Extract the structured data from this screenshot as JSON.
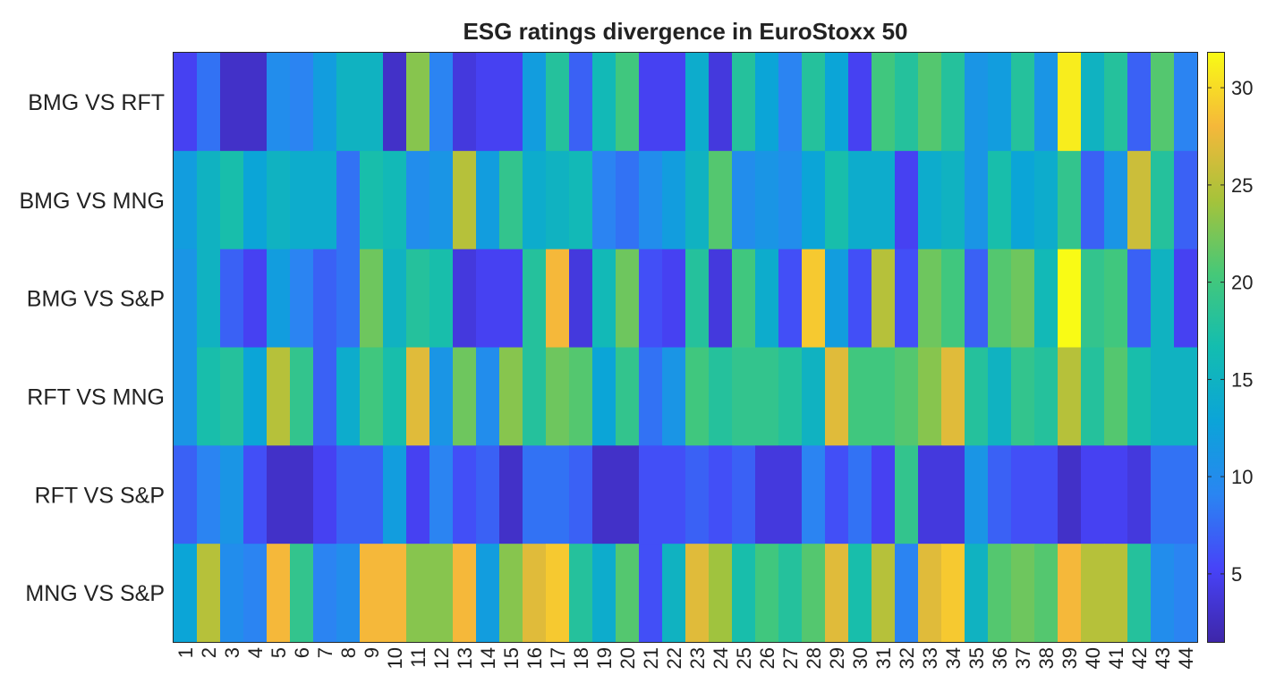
{
  "chart_data": {
    "type": "heatmap",
    "title": "ESG ratings divergence in EuroStoxx 50",
    "rows": [
      "BMG VS RFT",
      "BMG VS MNG",
      "BMG VS S&P",
      "RFT VS MNG",
      "RFT VS S&P",
      "MNG VS S&P"
    ],
    "columns": [
      "1",
      "2",
      "3",
      "4",
      "5",
      "6",
      "7",
      "8",
      "9",
      "10",
      "11",
      "12",
      "13",
      "14",
      "15",
      "16",
      "17",
      "18",
      "19",
      "20",
      "21",
      "22",
      "23",
      "24",
      "25",
      "26",
      "27",
      "28",
      "29",
      "30",
      "31",
      "32",
      "33",
      "34",
      "35",
      "36",
      "37",
      "38",
      "39",
      "40",
      "41",
      "42",
      "43",
      "44"
    ],
    "values": [
      [
        5,
        8,
        3,
        3,
        10,
        9,
        12,
        15,
        15,
        3,
        23,
        9,
        4,
        5,
        5,
        12,
        18,
        7,
        16,
        20,
        5,
        5,
        14,
        4,
        18,
        13,
        9,
        18,
        13,
        5,
        20,
        18,
        21,
        18,
        11,
        12,
        18,
        11,
        31,
        15,
        18,
        7,
        21,
        9
      ],
      [
        12,
        15,
        17,
        13,
        15,
        14,
        14,
        8,
        17,
        16,
        10,
        11,
        25,
        12,
        19,
        14,
        15,
        16,
        9,
        8,
        10,
        12,
        15,
        21,
        10,
        11,
        10,
        13,
        17,
        14,
        14,
        5,
        14,
        15,
        11,
        17,
        13,
        14,
        19,
        7,
        11,
        26,
        18,
        7
      ],
      [
        11,
        15,
        7,
        5,
        12,
        9,
        7,
        8,
        22,
        15,
        18,
        17,
        4,
        5,
        5,
        18,
        28,
        4,
        16,
        22,
        6,
        5,
        18,
        4,
        20,
        14,
        6,
        29,
        12,
        6,
        25,
        6,
        22,
        20,
        7,
        21,
        22,
        16,
        32,
        19,
        20,
        7,
        15,
        5
      ],
      [
        11,
        17,
        18,
        13,
        25,
        19,
        7,
        14,
        20,
        17,
        27,
        11,
        22,
        10,
        23,
        18,
        22,
        21,
        13,
        19,
        8,
        11,
        20,
        18,
        19,
        19,
        18,
        15,
        27,
        20,
        20,
        21,
        23,
        27,
        18,
        15,
        19,
        18,
        25,
        18,
        21,
        17,
        15,
        15
      ],
      [
        7,
        9,
        11,
        6,
        3,
        3,
        5,
        7,
        7,
        12,
        5,
        9,
        6,
        7,
        3,
        8,
        8,
        7,
        3,
        3,
        6,
        6,
        7,
        6,
        7,
        4,
        4,
        9,
        6,
        8,
        5,
        19,
        4,
        4,
        11,
        7,
        6,
        6,
        3,
        5,
        5,
        4,
        8,
        8
      ],
      [
        13,
        25,
        10,
        9,
        28,
        19,
        9,
        10,
        28,
        28,
        23,
        23,
        28,
        12,
        23,
        27,
        29,
        18,
        14,
        21,
        6,
        15,
        27,
        24,
        17,
        20,
        18,
        21,
        27,
        17,
        25,
        9,
        27,
        29,
        15,
        21,
        22,
        21,
        28,
        25,
        25,
        18,
        10,
        9
      ]
    ],
    "colorbar": {
      "min": 1.5,
      "max": 31.8,
      "ticks": [
        5,
        10,
        15,
        20,
        25,
        30
      ]
    },
    "colormap": "parula",
    "xlabel": "",
    "ylabel": ""
  }
}
